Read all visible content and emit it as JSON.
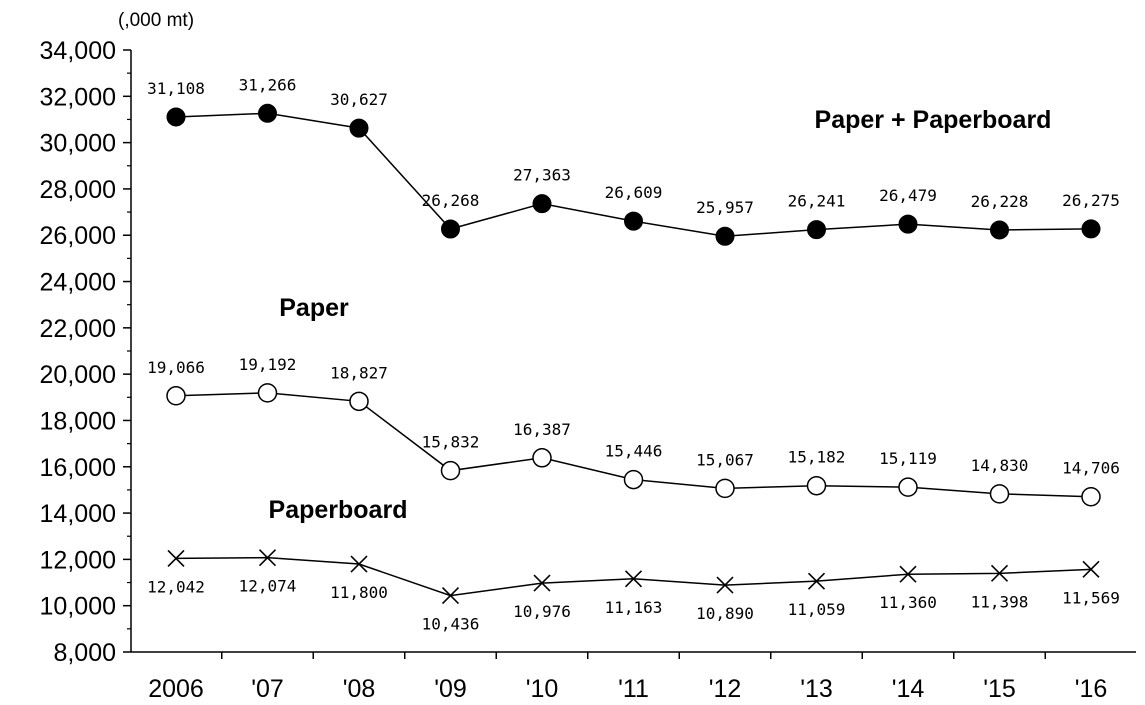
{
  "chart_data": {
    "type": "line",
    "title": "",
    "xlabel": "",
    "ylabel": "",
    "unit_label": "(,000 mt)",
    "categories": [
      "2006",
      "'07",
      "'08",
      "'09",
      "'10",
      "'11",
      "'12",
      "'13",
      "'14",
      "'15",
      "'16"
    ],
    "ylim": [
      8000,
      34000
    ],
    "yticks": [
      8000,
      10000,
      12000,
      14000,
      16000,
      18000,
      20000,
      22000,
      24000,
      26000,
      28000,
      30000,
      32000,
      34000
    ],
    "ytick_labels": [
      "8,000",
      "10,000",
      "12,000",
      "14,000",
      "16,000",
      "18,000",
      "20,000",
      "22,000",
      "24,000",
      "26,000",
      "28,000",
      "30,000",
      "32,000",
      "34,000"
    ],
    "grid": false,
    "series": [
      {
        "name": "Paper + Paperboard",
        "marker": "filled-circle",
        "values": [
          31108,
          31266,
          30627,
          26268,
          27363,
          26609,
          25957,
          26241,
          26479,
          26228,
          26275
        ],
        "labels": [
          "31,108",
          "31,266",
          "30,627",
          "26,268",
          "27,363",
          "26,609",
          "25,957",
          "26,241",
          "26,479",
          "26,228",
          "26,275"
        ]
      },
      {
        "name": "Paper",
        "marker": "open-circle",
        "values": [
          19066,
          19192,
          18827,
          15832,
          16387,
          15446,
          15067,
          15182,
          15119,
          14830,
          14706
        ],
        "labels": [
          "19,066",
          "19,192",
          "18,827",
          "15,832",
          "16,387",
          "15,446",
          "15,067",
          "15,182",
          "15,119",
          "14,830",
          "14,706"
        ]
      },
      {
        "name": "Paperboard",
        "marker": "x",
        "values": [
          12042,
          12074,
          11800,
          10436,
          10976,
          11163,
          10890,
          11059,
          11360,
          11398,
          11569
        ],
        "labels": [
          "12,042",
          "12,074",
          "11,800",
          "10,436",
          "10,976",
          "11,163",
          "10,890",
          "11,059",
          "11,360",
          "11,398",
          "11,569"
        ]
      }
    ]
  }
}
